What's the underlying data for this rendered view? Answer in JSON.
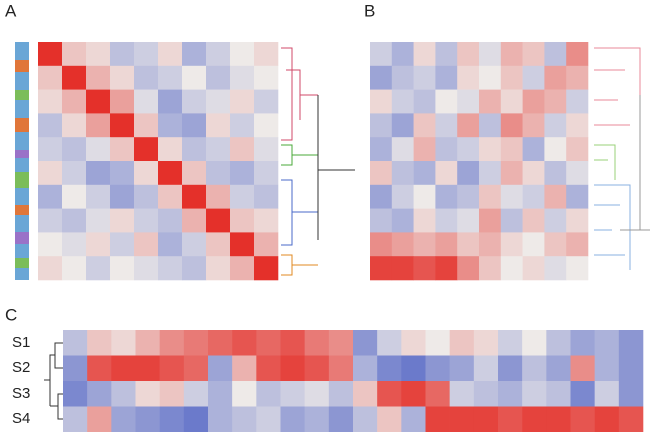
{
  "colors": {
    "low": "#4a5ec4",
    "mid": "#eeeae8",
    "high": "#e4302a"
  },
  "panels": [
    {
      "label": "A",
      "matrix": [
        [
          1,
          0.2,
          0.1,
          -0.3,
          -0.2,
          0.1,
          -0.4,
          -0.2,
          0.0,
          0.1
        ],
        [
          0.2,
          1,
          0.3,
          0.1,
          -0.3,
          -0.2,
          0.0,
          -0.3,
          -0.1,
          0.0
        ],
        [
          0.1,
          0.3,
          1,
          0.4,
          -0.1,
          -0.5,
          -0.2,
          -0.1,
          0.1,
          -0.2
        ],
        [
          -0.3,
          0.1,
          0.4,
          1,
          0.2,
          -0.4,
          -0.5,
          0.1,
          -0.2,
          0.0
        ],
        [
          -0.2,
          -0.3,
          -0.1,
          0.2,
          1,
          0.1,
          -0.3,
          -0.2,
          0.2,
          -0.1
        ],
        [
          0.1,
          -0.2,
          -0.5,
          -0.4,
          0.1,
          1,
          0.2,
          -0.3,
          -0.4,
          -0.2
        ],
        [
          -0.4,
          0.0,
          -0.2,
          -0.5,
          -0.3,
          0.2,
          1,
          0.3,
          -0.2,
          -0.3
        ],
        [
          -0.2,
          -0.3,
          -0.1,
          0.1,
          -0.2,
          -0.3,
          0.3,
          1,
          0.2,
          0.1
        ],
        [
          0.0,
          -0.1,
          0.1,
          -0.2,
          0.2,
          -0.4,
          -0.2,
          0.2,
          1,
          0.3
        ],
        [
          0.1,
          0.0,
          -0.2,
          0.0,
          -0.1,
          -0.2,
          -0.3,
          0.1,
          0.3,
          1
        ]
      ]
    },
    {
      "label": "B",
      "matrix": [
        [
          -0.2,
          -0.4,
          0.1,
          -0.3,
          0.2,
          -0.1,
          0.3,
          0.2,
          -0.3,
          0.5
        ],
        [
          -0.5,
          -0.3,
          -0.2,
          -0.4,
          0.1,
          0.0,
          0.2,
          -0.2,
          0.4,
          0.3
        ],
        [
          0.1,
          -0.2,
          -0.3,
          0.0,
          -0.1,
          0.3,
          0.1,
          0.4,
          0.3,
          -0.2
        ],
        [
          -0.3,
          -0.5,
          0.2,
          -0.2,
          0.4,
          -0.3,
          0.5,
          0.3,
          -0.2,
          0.1
        ],
        [
          -0.4,
          -0.1,
          0.3,
          -0.3,
          -0.2,
          0.1,
          0.2,
          -0.4,
          0.0,
          0.2
        ],
        [
          0.2,
          -0.3,
          -0.4,
          0.1,
          -0.5,
          -0.2,
          0.3,
          0.1,
          -0.3,
          -0.1
        ],
        [
          -0.5,
          -0.2,
          0.0,
          -0.4,
          -0.3,
          0.2,
          -0.1,
          -0.2,
          0.3,
          -0.4
        ],
        [
          -0.3,
          -0.4,
          0.1,
          -0.2,
          -0.1,
          0.4,
          -0.3,
          0.2,
          -0.2,
          0.1
        ],
        [
          0.5,
          0.4,
          0.3,
          0.4,
          0.2,
          0.3,
          0.1,
          0.0,
          0.2,
          0.3
        ],
        [
          0.9,
          0.9,
          0.8,
          0.9,
          0.5,
          0.2,
          0.0,
          0.1,
          -0.1,
          0.0
        ]
      ]
    },
    {
      "label": "C",
      "rows": [
        {
          "name": "S1",
          "values": [
            -0.3,
            0.2,
            0.1,
            0.3,
            0.5,
            0.6,
            0.7,
            0.8,
            0.7,
            0.8,
            0.6,
            0.5,
            -0.6,
            -0.2,
            0.1,
            0.0,
            0.2,
            0.1,
            -0.2,
            0.0,
            -0.3,
            -0.5,
            -0.4,
            -0.6
          ]
        },
        {
          "name": "S2",
          "values": [
            -0.6,
            0.8,
            0.9,
            0.9,
            0.8,
            0.7,
            -0.5,
            0.3,
            0.8,
            0.9,
            0.8,
            0.6,
            -0.4,
            -0.7,
            -0.8,
            -0.6,
            -0.5,
            -0.2,
            -0.6,
            -0.3,
            -0.5,
            0.5,
            -0.4,
            -0.6
          ]
        },
        {
          "name": "S3",
          "values": [
            -0.7,
            -0.5,
            -0.3,
            0.1,
            0.2,
            -0.2,
            -0.4,
            0.0,
            -0.3,
            -0.2,
            -0.1,
            -0.3,
            0.2,
            0.8,
            0.9,
            0.7,
            -0.2,
            -0.3,
            -0.4,
            -0.2,
            -0.3,
            -0.7,
            -0.2,
            -0.6
          ]
        },
        {
          "name": "S4",
          "values": [
            -0.3,
            0.4,
            -0.5,
            -0.6,
            -0.7,
            -0.8,
            -0.4,
            -0.3,
            -0.2,
            -0.5,
            -0.4,
            -0.6,
            -0.3,
            0.2,
            -0.4,
            0.9,
            0.9,
            0.9,
            0.8,
            0.9,
            0.9,
            0.8,
            0.9,
            0.8
          ]
        }
      ]
    }
  ]
}
